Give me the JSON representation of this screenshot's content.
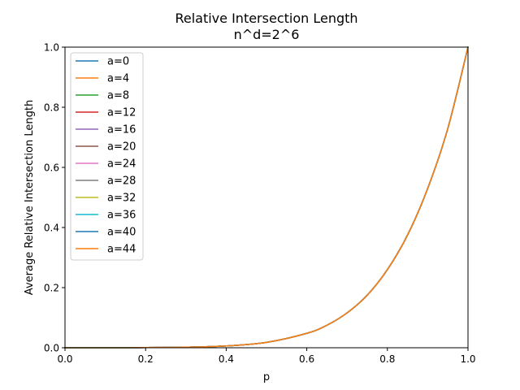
{
  "chart_data": {
    "type": "line",
    "title": "Relative Intersection Length",
    "subtitle": "n^d=2^6",
    "xlabel": "p",
    "ylabel": "Average Relative Intersection Length",
    "xlim": [
      0.0,
      1.0
    ],
    "ylim": [
      0.0,
      1.0
    ],
    "xticks": [
      "0.0",
      "0.2",
      "0.4",
      "0.6",
      "0.8",
      "1.0"
    ],
    "yticks": [
      "0.0",
      "0.2",
      "0.4",
      "0.6",
      "0.8",
      "1.0"
    ],
    "grid": false,
    "legend_position": "upper-left",
    "x": [
      0.0,
      0.1,
      0.2,
      0.3,
      0.4,
      0.5,
      0.6,
      0.65,
      0.7,
      0.75,
      0.8,
      0.85,
      0.9,
      0.95,
      1.0
    ],
    "series": [
      {
        "name": "a=0",
        "color": "#1f77b4",
        "values": [
          0.0,
          0.0,
          0.0005,
          0.002,
          0.006,
          0.018,
          0.048,
          0.075,
          0.116,
          0.175,
          0.26,
          0.375,
          0.53,
          0.73,
          1.0
        ]
      },
      {
        "name": "a=4",
        "color": "#ff7f0e",
        "values": [
          0.0,
          0.0,
          0.0005,
          0.002,
          0.006,
          0.018,
          0.048,
          0.075,
          0.116,
          0.175,
          0.26,
          0.375,
          0.53,
          0.73,
          1.0
        ]
      },
      {
        "name": "a=8",
        "color": "#2ca02c",
        "values": [
          0.0,
          0.0,
          0.0005,
          0.002,
          0.006,
          0.018,
          0.048,
          0.075,
          0.116,
          0.175,
          0.26,
          0.375,
          0.53,
          0.73,
          1.0
        ]
      },
      {
        "name": "a=12",
        "color": "#d62728",
        "values": [
          0.0,
          0.0,
          0.0005,
          0.002,
          0.006,
          0.018,
          0.048,
          0.075,
          0.116,
          0.175,
          0.26,
          0.375,
          0.53,
          0.73,
          1.0
        ]
      },
      {
        "name": "a=16",
        "color": "#9467bd",
        "values": [
          0.0,
          0.0,
          0.0005,
          0.002,
          0.006,
          0.018,
          0.048,
          0.075,
          0.116,
          0.175,
          0.26,
          0.375,
          0.53,
          0.73,
          1.0
        ]
      },
      {
        "name": "a=20",
        "color": "#8c564b",
        "values": [
          0.0,
          0.0,
          0.0005,
          0.002,
          0.006,
          0.018,
          0.048,
          0.075,
          0.116,
          0.175,
          0.26,
          0.375,
          0.53,
          0.73,
          1.0
        ]
      },
      {
        "name": "a=24",
        "color": "#e377c2",
        "values": [
          0.0,
          0.0,
          0.0005,
          0.002,
          0.006,
          0.018,
          0.048,
          0.075,
          0.116,
          0.175,
          0.26,
          0.375,
          0.53,
          0.73,
          1.0
        ]
      },
      {
        "name": "a=28",
        "color": "#7f7f7f",
        "values": [
          0.0,
          0.0,
          0.0005,
          0.002,
          0.006,
          0.018,
          0.048,
          0.075,
          0.116,
          0.175,
          0.26,
          0.375,
          0.53,
          0.73,
          1.0
        ]
      },
      {
        "name": "a=32",
        "color": "#bcbd22",
        "values": [
          0.0,
          0.0,
          0.0005,
          0.002,
          0.006,
          0.018,
          0.048,
          0.075,
          0.116,
          0.175,
          0.26,
          0.375,
          0.53,
          0.73,
          1.0
        ]
      },
      {
        "name": "a=36",
        "color": "#17becf",
        "values": [
          0.0,
          0.0,
          0.0005,
          0.002,
          0.006,
          0.018,
          0.048,
          0.075,
          0.116,
          0.175,
          0.26,
          0.375,
          0.53,
          0.73,
          1.0
        ]
      },
      {
        "name": "a=40",
        "color": "#1f77b4",
        "values": [
          0.0,
          0.0,
          0.0005,
          0.002,
          0.006,
          0.018,
          0.048,
          0.075,
          0.116,
          0.175,
          0.26,
          0.375,
          0.53,
          0.73,
          1.0
        ]
      },
      {
        "name": "a=44",
        "color": "#ff7f0e",
        "values": [
          0.0,
          0.0,
          0.0005,
          0.002,
          0.006,
          0.018,
          0.048,
          0.075,
          0.116,
          0.175,
          0.26,
          0.375,
          0.53,
          0.73,
          1.0
        ]
      }
    ]
  }
}
